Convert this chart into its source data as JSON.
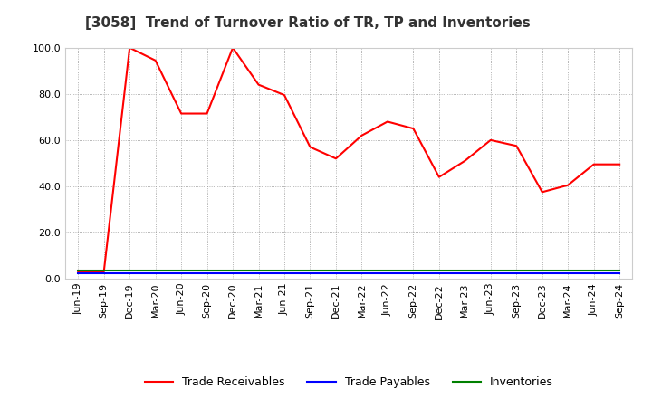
{
  "title": "[3058]  Trend of Turnover Ratio of TR, TP and Inventories",
  "x_labels": [
    "Jun-19",
    "Sep-19",
    "Dec-19",
    "Mar-20",
    "Jun-20",
    "Sep-20",
    "Dec-20",
    "Mar-21",
    "Jun-21",
    "Sep-21",
    "Dec-21",
    "Mar-22",
    "Jun-22",
    "Sep-22",
    "Dec-22",
    "Mar-23",
    "Jun-23",
    "Sep-23",
    "Dec-23",
    "Mar-24",
    "Jun-24",
    "Sep-24"
  ],
  "trade_receivables": [
    3.0,
    3.0,
    100.0,
    94.5,
    71.5,
    71.5,
    100.0,
    84.0,
    79.5,
    57.0,
    52.0,
    62.0,
    68.0,
    65.0,
    44.0,
    51.0,
    60.0,
    57.5,
    37.5,
    40.5,
    49.5,
    49.5
  ],
  "trade_payables": [
    2.5,
    2.5,
    2.5,
    2.5,
    2.5,
    2.5,
    2.5,
    2.5,
    2.5,
    2.5,
    2.5,
    2.5,
    2.5,
    2.5,
    2.5,
    2.5,
    2.5,
    2.5,
    2.5,
    2.5,
    2.5,
    2.5
  ],
  "inventories": [
    3.5,
    3.5,
    3.5,
    3.5,
    3.5,
    3.5,
    3.5,
    3.5,
    3.5,
    3.5,
    3.5,
    3.5,
    3.5,
    3.5,
    3.5,
    3.5,
    3.5,
    3.5,
    3.5,
    3.5,
    3.5,
    3.5
  ],
  "tr_color": "#FF0000",
  "tp_color": "#0000FF",
  "inv_color": "#008000",
  "ylim": [
    0.0,
    100.0
  ],
  "yticks": [
    0.0,
    20.0,
    40.0,
    60.0,
    80.0,
    100.0
  ],
  "legend_labels": [
    "Trade Receivables",
    "Trade Payables",
    "Inventories"
  ],
  "background_color": "#FFFFFF",
  "grid_color": "#999999",
  "title_fontsize": 11,
  "label_fontsize": 8
}
